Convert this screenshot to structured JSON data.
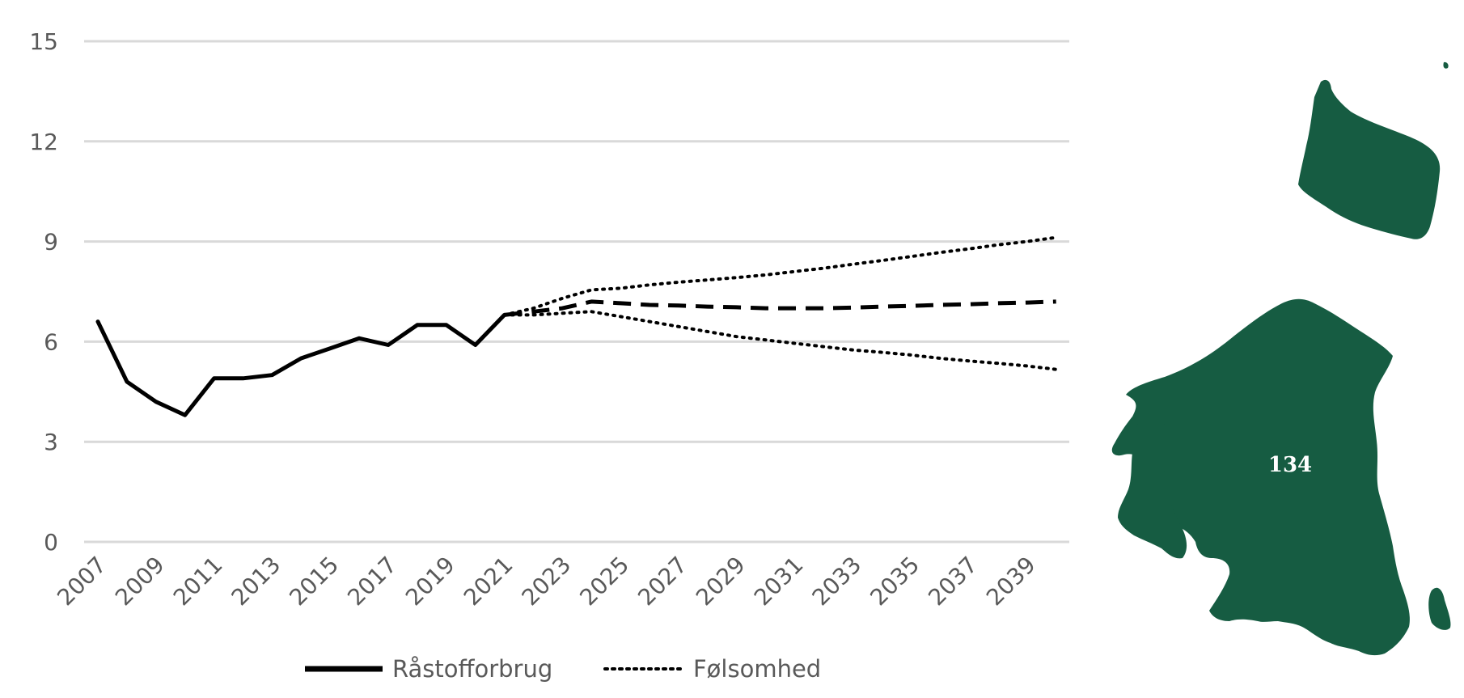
{
  "chart_data": {
    "type": "line",
    "title": "",
    "xlabel": "",
    "ylabel": "",
    "ylim": [
      0,
      15
    ],
    "yticks": [
      0,
      3,
      6,
      9,
      12,
      15
    ],
    "xlim": [
      2007,
      2040
    ],
    "xticks": [
      2007,
      2009,
      2011,
      2013,
      2015,
      2017,
      2019,
      2021,
      2023,
      2025,
      2027,
      2029,
      2031,
      2033,
      2035,
      2037,
      2039
    ],
    "grid": true,
    "legend_position": "bottom",
    "series": [
      {
        "name": "Råstofforbrug",
        "style": "solid",
        "color": "#000000",
        "x": [
          2007,
          2008,
          2009,
          2010,
          2011,
          2012,
          2013,
          2014,
          2015,
          2016,
          2017,
          2018,
          2019,
          2020,
          2021
        ],
        "y": [
          6.6,
          4.8,
          4.2,
          3.8,
          4.9,
          4.9,
          5.0,
          5.5,
          5.8,
          6.1,
          5.9,
          6.5,
          6.5,
          5.9,
          6.8
        ]
      },
      {
        "style": "dashed",
        "color": "#000000",
        "x": [
          2021,
          2022,
          2023,
          2024,
          2025,
          2026,
          2027,
          2028,
          2029,
          2030,
          2031,
          2032,
          2033,
          2034,
          2035,
          2036,
          2037,
          2038,
          2039,
          2040
        ],
        "y": [
          6.8,
          6.9,
          7.0,
          7.2,
          7.15,
          7.1,
          7.08,
          7.05,
          7.03,
          7.0,
          7.0,
          7.0,
          7.02,
          7.05,
          7.07,
          7.1,
          7.12,
          7.15,
          7.17,
          7.2
        ]
      },
      {
        "name": "Følsomhed",
        "style": "dotted",
        "color": "#000000",
        "x": [
          2021,
          2022,
          2023,
          2024,
          2025,
          2026,
          2027,
          2028,
          2029,
          2030,
          2031,
          2032,
          2033,
          2034,
          2035,
          2036,
          2037,
          2038,
          2039,
          2040
        ],
        "y": [
          6.8,
          7.0,
          7.3,
          7.55,
          7.6,
          7.7,
          7.78,
          7.85,
          7.92,
          8.0,
          8.1,
          8.2,
          8.32,
          8.43,
          8.55,
          8.67,
          8.78,
          8.9,
          9.0,
          9.12
        ]
      },
      {
        "name": "Følsomhed",
        "style": "dotted",
        "color": "#000000",
        "x": [
          2021,
          2022,
          2023,
          2024,
          2025,
          2026,
          2027,
          2028,
          2029,
          2030,
          2031,
          2032,
          2033,
          2034,
          2035,
          2036,
          2037,
          2038,
          2039,
          2040
        ],
        "y": [
          6.8,
          6.8,
          6.85,
          6.9,
          6.75,
          6.6,
          6.45,
          6.3,
          6.15,
          6.05,
          5.95,
          5.85,
          5.75,
          5.68,
          5.6,
          5.5,
          5.42,
          5.35,
          5.27,
          5.17
        ]
      }
    ],
    "legend": [
      {
        "label": "Råstofforbrug",
        "style": "solid"
      },
      {
        "label": "Følsomhed",
        "style": "dotted"
      }
    ]
  },
  "map": {
    "region_label": "134",
    "fill_color": "#165c42"
  }
}
